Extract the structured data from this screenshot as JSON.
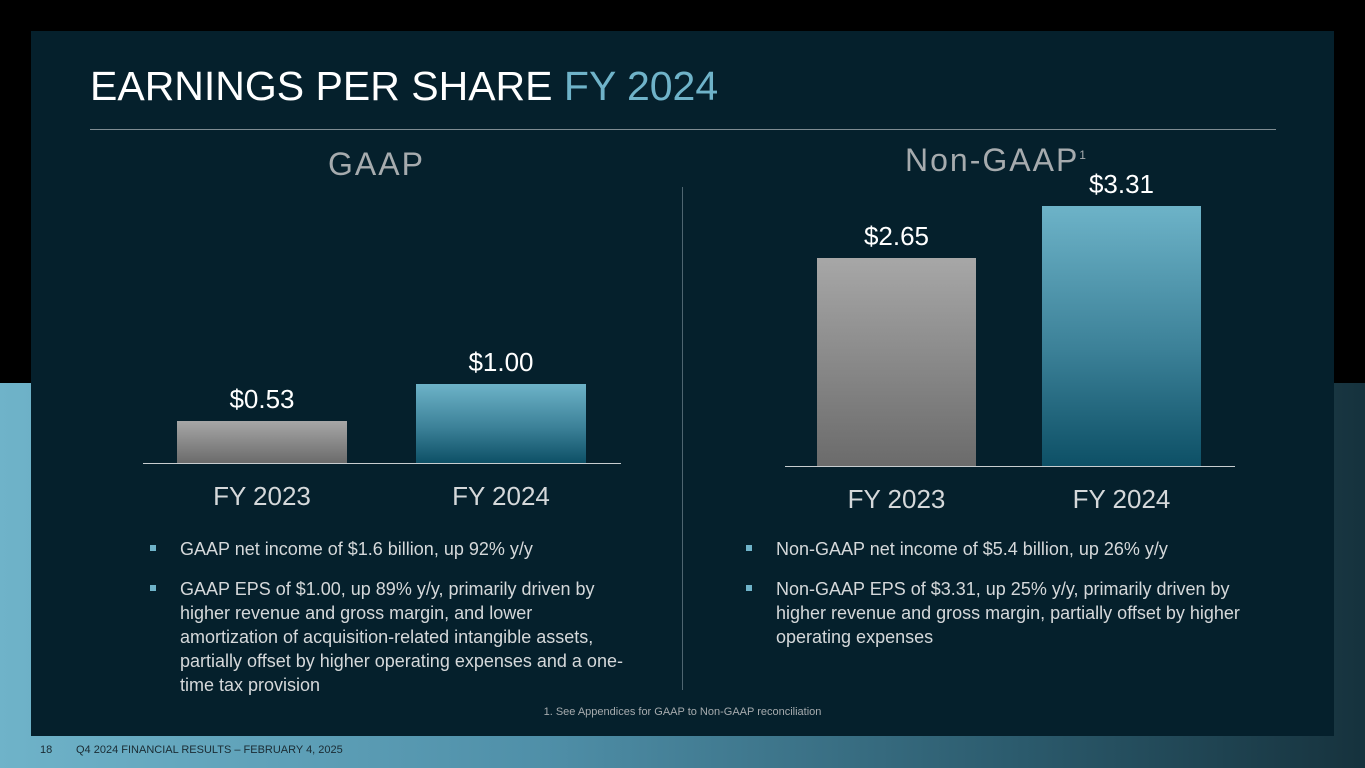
{
  "title": {
    "main": "EARNINGS PER SHARE",
    "accent": "FY 2024"
  },
  "colors": {
    "accent": "#6fb3c9",
    "background": "#05202c",
    "bar_prior": "#8a8a8a",
    "bar_current": "#3c8198"
  },
  "gaap": {
    "heading": "GAAP",
    "bullets": [
      "GAAP net income of $1.6 billion, up 92% y/y",
      "GAAP EPS of $1.00, up 89% y/y, primarily driven by higher revenue and gross margin, and lower amortization of acquisition-related intangible assets, partially offset by higher operating expenses and a one-time tax provision"
    ]
  },
  "non_gaap": {
    "heading": "Non-GAAP",
    "heading_sup": "1",
    "bullets": [
      "Non-GAAP net income of $5.4 billion, up 26% y/y",
      "Non-GAAP EPS of $3.31, up 25% y/y, primarily driven by higher revenue and gross margin, partially offset by higher operating expenses"
    ]
  },
  "chart_data": [
    {
      "type": "bar",
      "title": "GAAP",
      "categories": [
        "FY 2023",
        "FY 2024"
      ],
      "values": [
        0.53,
        1.0
      ],
      "value_labels": [
        "$0.53",
        "$1.00"
      ],
      "ylim": [
        0,
        3.31
      ]
    },
    {
      "type": "bar",
      "title": "Non-GAAP",
      "categories": [
        "FY 2023",
        "FY 2024"
      ],
      "values": [
        2.65,
        3.31
      ],
      "value_labels": [
        "$2.65",
        "$3.31"
      ],
      "ylim": [
        0,
        3.31
      ]
    }
  ],
  "footnote": "1. See Appendices for GAAP to Non-GAAP reconciliation",
  "footer": {
    "page_number": "18",
    "text": "Q4 2024 FINANCIAL RESULTS – FEBRUARY 4, 2025"
  }
}
